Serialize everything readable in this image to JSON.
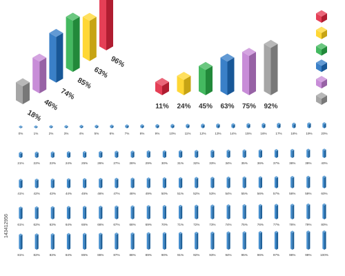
{
  "colors": {
    "red": "#e2253f",
    "yellow": "#ffd21a",
    "green": "#2baf4a",
    "blue": "#1f6fc1",
    "purple": "#c17dd3",
    "gray": "#9a9a9a",
    "small_bar": "#2a7ec6"
  },
  "color_keys": [
    "red",
    "yellow",
    "green",
    "blue",
    "purple",
    "gray"
  ],
  "iso_chart": {
    "bars": [
      {
        "value": 18,
        "label": "18%",
        "color": "gray"
      },
      {
        "value": 46,
        "label": "46%",
        "color": "purple"
      },
      {
        "value": 74,
        "label": "74%",
        "color": "blue"
      },
      {
        "value": 85,
        "label": "85%",
        "color": "green"
      },
      {
        "value": 63,
        "label": "63%",
        "color": "yellow"
      },
      {
        "value": 96,
        "label": "96%",
        "color": "red"
      }
    ]
  },
  "front_chart": {
    "bars": [
      {
        "value": 11,
        "label": "11%",
        "color": "red"
      },
      {
        "value": 24,
        "label": "24%",
        "color": "yellow"
      },
      {
        "value": 45,
        "label": "45%",
        "color": "green"
      },
      {
        "value": 63,
        "label": "63%",
        "color": "blue"
      },
      {
        "value": 75,
        "label": "75%",
        "color": "purple"
      },
      {
        "value": 92,
        "label": "92%",
        "color": "gray"
      }
    ]
  },
  "small_bars": {
    "rows": [
      {
        "values": [
          0,
          1,
          2,
          3,
          4,
          5,
          6,
          7,
          8,
          9,
          10,
          11,
          12,
          13,
          14,
          15,
          16,
          17,
          18,
          19,
          20
        ],
        "labels": [
          "0%",
          "1%",
          "2%",
          "3%",
          "4%",
          "5%",
          "6%",
          "7%",
          "8%",
          "9%",
          "10%",
          "11%",
          "12%",
          "13%",
          "14%",
          "15%",
          "16%",
          "17%",
          "18%",
          "19%",
          "20%"
        ]
      },
      {
        "values": [
          21,
          22,
          23,
          24,
          25,
          26,
          27,
          28,
          29,
          30,
          31,
          32,
          33,
          34,
          35,
          36,
          37,
          38,
          39,
          40
        ],
        "labels": [
          "21%",
          "22%",
          "23%",
          "24%",
          "25%",
          "26%",
          "27%",
          "28%",
          "29%",
          "30%",
          "31%",
          "32%",
          "33%",
          "34%",
          "35%",
          "36%",
          "37%",
          "38%",
          "39%",
          "40%"
        ]
      },
      {
        "values": [
          41,
          42,
          43,
          44,
          45,
          46,
          47,
          48,
          49,
          50,
          51,
          52,
          53,
          54,
          55,
          56,
          57,
          58,
          59,
          60
        ],
        "labels": [
          "41%",
          "42%",
          "43%",
          "44%",
          "45%",
          "46%",
          "47%",
          "48%",
          "49%",
          "50%",
          "51%",
          "52%",
          "53%",
          "54%",
          "55%",
          "56%",
          "57%",
          "58%",
          "59%",
          "60%"
        ]
      },
      {
        "values": [
          61,
          62,
          63,
          64,
          65,
          66,
          67,
          68,
          69,
          70,
          71,
          72,
          73,
          74,
          75,
          76,
          77,
          78,
          79,
          80
        ],
        "labels": [
          "61%",
          "62%",
          "63%",
          "64%",
          "65%",
          "66%",
          "67%",
          "68%",
          "69%",
          "70%",
          "71%",
          "72%",
          "73%",
          "74%",
          "75%",
          "76%",
          "77%",
          "78%",
          "79%",
          "80%"
        ]
      },
      {
        "values": [
          81,
          82,
          83,
          84,
          85,
          86,
          87,
          88,
          89,
          90,
          91,
          92,
          93,
          94,
          95,
          96,
          97,
          98,
          99,
          100
        ],
        "labels": [
          "81%",
          "82%",
          "83%",
          "84%",
          "85%",
          "86%",
          "87%",
          "88%",
          "89%",
          "90%",
          "91%",
          "92%",
          "93%",
          "94%",
          "95%",
          "96%",
          "97%",
          "98%",
          "99%",
          "100%"
        ]
      }
    ]
  },
  "watermark": {
    "text": "143412956"
  }
}
